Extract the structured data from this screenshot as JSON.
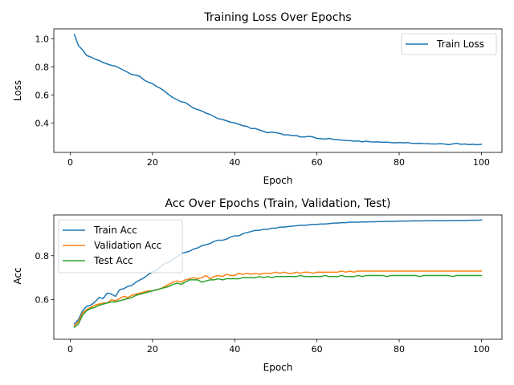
{
  "chart_data": [
    {
      "type": "line",
      "title": "Training Loss Over Epochs",
      "xlabel": "Epoch",
      "ylabel": "Loss",
      "xlim": [
        -4,
        105
      ],
      "ylim": [
        0.19,
        1.07
      ],
      "xticks": [
        0,
        20,
        40,
        60,
        80,
        100
      ],
      "yticks": [
        0.4,
        0.6,
        0.8,
        1.0
      ],
      "ytick_labels": [
        "0.4",
        "0.6",
        "0.8",
        "1.0"
      ],
      "grid": false,
      "legend": "top-right",
      "series": [
        {
          "name": "Train Loss",
          "color": "#1f77b4",
          "x": [
            1,
            2,
            3,
            4,
            5,
            6,
            7,
            8,
            9,
            10,
            11,
            12,
            13,
            14,
            15,
            16,
            17,
            18,
            19,
            20,
            21,
            22,
            23,
            24,
            25,
            26,
            27,
            28,
            29,
            30,
            31,
            32,
            33,
            34,
            35,
            36,
            37,
            38,
            39,
            40,
            41,
            42,
            43,
            44,
            45,
            46,
            47,
            48,
            49,
            50,
            51,
            52,
            53,
            54,
            55,
            56,
            57,
            58,
            59,
            60,
            61,
            62,
            63,
            64,
            65,
            66,
            67,
            68,
            69,
            70,
            71,
            72,
            73,
            74,
            75,
            76,
            77,
            78,
            79,
            80,
            81,
            82,
            83,
            84,
            85,
            86,
            87,
            88,
            89,
            90,
            91,
            92,
            93,
            94,
            95,
            96,
            97,
            98,
            99,
            100
          ],
          "values": [
            1.03,
            0.95,
            0.92,
            0.88,
            0.87,
            0.855,
            0.845,
            0.83,
            0.82,
            0.81,
            0.805,
            0.79,
            0.775,
            0.76,
            0.745,
            0.74,
            0.73,
            0.705,
            0.69,
            0.68,
            0.66,
            0.645,
            0.625,
            0.6,
            0.58,
            0.565,
            0.55,
            0.545,
            0.525,
            0.505,
            0.495,
            0.485,
            0.47,
            0.46,
            0.445,
            0.43,
            0.425,
            0.415,
            0.405,
            0.4,
            0.39,
            0.38,
            0.375,
            0.36,
            0.36,
            0.35,
            0.34,
            0.33,
            0.335,
            0.33,
            0.325,
            0.315,
            0.315,
            0.31,
            0.31,
            0.3,
            0.3,
            0.305,
            0.3,
            0.29,
            0.288,
            0.285,
            0.29,
            0.282,
            0.28,
            0.278,
            0.275,
            0.274,
            0.27,
            0.272,
            0.265,
            0.27,
            0.265,
            0.264,
            0.265,
            0.262,
            0.263,
            0.26,
            0.258,
            0.26,
            0.258,
            0.26,
            0.255,
            0.254,
            0.255,
            0.253,
            0.252,
            0.25,
            0.25,
            0.252,
            0.25,
            0.245,
            0.25,
            0.255,
            0.248,
            0.25,
            0.245,
            0.248,
            0.244,
            0.248
          ]
        }
      ]
    },
    {
      "type": "line",
      "title": "Acc Over Epochs (Train, Validation, Test)",
      "xlabel": "Epoch",
      "ylabel": "Acc",
      "xlim": [
        -4,
        105
      ],
      "ylim": [
        0.42,
        0.985
      ],
      "xticks": [
        0,
        20,
        40,
        60,
        80,
        100
      ],
      "yticks": [
        0.6,
        0.8
      ],
      "ytick_labels": [
        "0.6",
        "0.8"
      ],
      "grid": false,
      "legend": "top-left",
      "series": [
        {
          "name": "Train Acc",
          "color": "#1f77b4",
          "x": [
            1,
            2,
            3,
            4,
            5,
            6,
            7,
            8,
            9,
            10,
            11,
            12,
            13,
            14,
            15,
            16,
            17,
            18,
            19,
            20,
            21,
            22,
            23,
            24,
            25,
            26,
            27,
            28,
            29,
            30,
            31,
            32,
            33,
            34,
            35,
            36,
            37,
            38,
            39,
            40,
            41,
            42,
            43,
            44,
            45,
            46,
            47,
            48,
            49,
            50,
            51,
            52,
            53,
            54,
            55,
            56,
            57,
            58,
            59,
            60,
            61,
            62,
            63,
            64,
            65,
            66,
            67,
            68,
            69,
            70,
            71,
            72,
            73,
            74,
            75,
            76,
            77,
            78,
            79,
            80,
            81,
            82,
            83,
            84,
            85,
            86,
            87,
            88,
            89,
            90,
            91,
            92,
            93,
            94,
            95,
            96,
            97,
            98,
            99,
            100
          ],
          "values": [
            0.49,
            0.51,
            0.55,
            0.57,
            0.575,
            0.59,
            0.61,
            0.605,
            0.63,
            0.625,
            0.615,
            0.645,
            0.65,
            0.66,
            0.665,
            0.68,
            0.69,
            0.7,
            0.715,
            0.725,
            0.735,
            0.75,
            0.765,
            0.77,
            0.785,
            0.795,
            0.81,
            0.815,
            0.82,
            0.83,
            0.835,
            0.845,
            0.85,
            0.855,
            0.865,
            0.87,
            0.87,
            0.875,
            0.885,
            0.89,
            0.89,
            0.9,
            0.905,
            0.91,
            0.915,
            0.915,
            0.92,
            0.92,
            0.925,
            0.925,
            0.93,
            0.93,
            0.932,
            0.934,
            0.936,
            0.938,
            0.938,
            0.94,
            0.942,
            0.942,
            0.944,
            0.944,
            0.946,
            0.948,
            0.948,
            0.95,
            0.95,
            0.952,
            0.952,
            0.952,
            0.953,
            0.953,
            0.954,
            0.954,
            0.955,
            0.955,
            0.956,
            0.956,
            0.956,
            0.957,
            0.957,
            0.957,
            0.958,
            0.958,
            0.958,
            0.958,
            0.959,
            0.959,
            0.959,
            0.959,
            0.959,
            0.959,
            0.96,
            0.96,
            0.96,
            0.96,
            0.961,
            0.961,
            0.961,
            0.962
          ]
        },
        {
          "name": "Validation Acc",
          "color": "#ff7f0e",
          "x": [
            1,
            2,
            3,
            4,
            5,
            6,
            7,
            8,
            9,
            10,
            11,
            12,
            13,
            14,
            15,
            16,
            17,
            18,
            19,
            20,
            21,
            22,
            23,
            24,
            25,
            26,
            27,
            28,
            29,
            30,
            31,
            32,
            33,
            34,
            35,
            36,
            37,
            38,
            39,
            40,
            41,
            42,
            43,
            44,
            45,
            46,
            47,
            48,
            49,
            50,
            51,
            52,
            53,
            54,
            55,
            56,
            57,
            58,
            59,
            60,
            61,
            62,
            63,
            64,
            65,
            66,
            67,
            68,
            69,
            70,
            71,
            72,
            73,
            74,
            75,
            76,
            77,
            78,
            79,
            80,
            81,
            82,
            83,
            84,
            85,
            86,
            87,
            88,
            89,
            90,
            91,
            92,
            93,
            94,
            95,
            96,
            97,
            98,
            99,
            100
          ],
          "values": [
            0.48,
            0.5,
            0.54,
            0.555,
            0.565,
            0.575,
            0.58,
            0.585,
            0.585,
            0.6,
            0.595,
            0.605,
            0.615,
            0.61,
            0.62,
            0.625,
            0.63,
            0.635,
            0.64,
            0.64,
            0.645,
            0.65,
            0.66,
            0.67,
            0.68,
            0.685,
            0.68,
            0.69,
            0.695,
            0.7,
            0.695,
            0.7,
            0.71,
            0.695,
            0.705,
            0.71,
            0.705,
            0.715,
            0.71,
            0.71,
            0.72,
            0.715,
            0.72,
            0.715,
            0.72,
            0.715,
            0.72,
            0.72,
            0.72,
            0.725,
            0.72,
            0.725,
            0.72,
            0.72,
            0.725,
            0.72,
            0.725,
            0.725,
            0.72,
            0.725,
            0.725,
            0.725,
            0.725,
            0.725,
            0.725,
            0.73,
            0.725,
            0.73,
            0.725,
            0.73,
            0.73,
            0.73,
            0.73,
            0.73,
            0.73,
            0.73,
            0.73,
            0.73,
            0.73,
            0.73,
            0.73,
            0.73,
            0.73,
            0.73,
            0.73,
            0.73,
            0.73,
            0.73,
            0.73,
            0.73,
            0.73,
            0.73,
            0.73,
            0.73,
            0.73,
            0.73,
            0.73,
            0.73,
            0.73,
            0.73
          ]
        },
        {
          "name": "Test Acc",
          "color": "#2ca02c",
          "x": [
            1,
            2,
            3,
            4,
            5,
            6,
            7,
            8,
            9,
            10,
            11,
            12,
            13,
            14,
            15,
            16,
            17,
            18,
            19,
            20,
            21,
            22,
            23,
            24,
            25,
            26,
            27,
            28,
            29,
            30,
            31,
            32,
            33,
            34,
            35,
            36,
            37,
            38,
            39,
            40,
            41,
            42,
            43,
            44,
            45,
            46,
            47,
            48,
            49,
            50,
            51,
            52,
            53,
            54,
            55,
            56,
            57,
            58,
            59,
            60,
            61,
            62,
            63,
            64,
            65,
            66,
            67,
            68,
            69,
            70,
            71,
            72,
            73,
            74,
            75,
            76,
            77,
            78,
            79,
            80,
            81,
            82,
            83,
            84,
            85,
            86,
            87,
            88,
            89,
            90,
            91,
            92,
            93,
            94,
            95,
            96,
            97,
            98,
            99,
            100
          ],
          "values": [
            0.475,
            0.49,
            0.53,
            0.55,
            0.56,
            0.565,
            0.575,
            0.58,
            0.585,
            0.59,
            0.59,
            0.595,
            0.6,
            0.605,
            0.61,
            0.62,
            0.625,
            0.63,
            0.635,
            0.64,
            0.645,
            0.65,
            0.655,
            0.66,
            0.67,
            0.675,
            0.67,
            0.68,
            0.69,
            0.69,
            0.69,
            0.68,
            0.685,
            0.69,
            0.69,
            0.695,
            0.69,
            0.695,
            0.695,
            0.695,
            0.695,
            0.7,
            0.7,
            0.7,
            0.7,
            0.705,
            0.7,
            0.705,
            0.7,
            0.705,
            0.705,
            0.705,
            0.705,
            0.705,
            0.705,
            0.71,
            0.705,
            0.705,
            0.705,
            0.705,
            0.705,
            0.71,
            0.705,
            0.705,
            0.705,
            0.71,
            0.705,
            0.705,
            0.705,
            0.71,
            0.705,
            0.71,
            0.71,
            0.71,
            0.71,
            0.71,
            0.705,
            0.71,
            0.71,
            0.71,
            0.71,
            0.71,
            0.71,
            0.71,
            0.705,
            0.71,
            0.71,
            0.71,
            0.71,
            0.71,
            0.71,
            0.71,
            0.705,
            0.71,
            0.71,
            0.71,
            0.71,
            0.71,
            0.71,
            0.71
          ]
        }
      ]
    }
  ]
}
